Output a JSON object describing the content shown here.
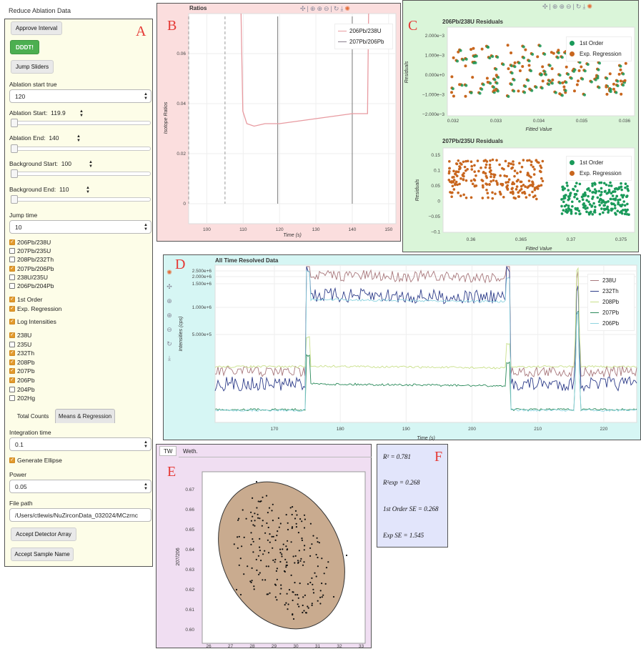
{
  "app": {
    "title": "Reduce Ablation Data"
  },
  "panel_letters": {
    "a": "A",
    "b": "B",
    "c": "C",
    "d": "D",
    "e": "E",
    "f": "F"
  },
  "controls": {
    "approve_interval": "Approve Interval",
    "dddt": "DDDT!",
    "jump_sliders": "Jump Sliders",
    "ablation_start_true_label": "Ablation start true",
    "ablation_start_true_value": "120",
    "ablation_start_label": "Ablation Start:",
    "ablation_start_value": "119.9",
    "ablation_end_label": "Ablation End:",
    "ablation_end_value": "140",
    "background_start_label": "Background Start:",
    "background_start_value": "100",
    "background_end_label": "Background End:",
    "background_end_value": "110",
    "jump_time_label": "Jump time",
    "jump_time_value": "10",
    "ratio_checks": [
      {
        "label": "206Pb/238U",
        "checked": true
      },
      {
        "label": "207Pb/235U",
        "checked": false
      },
      {
        "label": "208Pb/232Th",
        "checked": false
      },
      {
        "label": "207Pb/206Pb",
        "checked": true
      },
      {
        "label": "238U/235U",
        "checked": false
      },
      {
        "label": "206Pb/204Pb",
        "checked": false
      }
    ],
    "regression_checks": [
      {
        "label": "1st Order",
        "checked": true
      },
      {
        "label": "Exp. Regression",
        "checked": true
      }
    ],
    "log_intensities": {
      "label": "Log Intensities",
      "checked": true
    },
    "isotope_checks": [
      {
        "label": "238U",
        "checked": true
      },
      {
        "label": "235U",
        "checked": false
      },
      {
        "label": "232Th",
        "checked": true
      },
      {
        "label": "208Pb",
        "checked": true
      },
      {
        "label": "207Pb",
        "checked": true
      },
      {
        "label": "206Pb",
        "checked": true
      },
      {
        "label": "204Pb",
        "checked": false
      },
      {
        "label": "202Hg",
        "checked": false
      }
    ],
    "tabs": [
      "Total Counts",
      "Means & Regression"
    ],
    "integration_time_label": "Integration time",
    "integration_time_value": "0.1",
    "generate_ellipse": {
      "label": "Generate Ellipse",
      "checked": true
    },
    "power_label": "Power",
    "power_value": "0.05",
    "file_path_label": "File path",
    "file_path_value": "/Users/ctlewis/NuZirconData_032024/MCzrnc",
    "accept_detector": "Accept Detector Array",
    "accept_sample": "Accept Sample Name"
  },
  "toolbar_icons": [
    "pan-icon",
    "box-zoom-icon",
    "zoom-in-icon",
    "zoom-out-icon",
    "reset-icon",
    "save-icon",
    "bokeh-logo-icon"
  ],
  "colors": {
    "orange": "#c8661e",
    "green": "#1a9a5a",
    "pink_line": "#e89aa0",
    "grey_line": "#8a7f8e",
    "ellipse_fill": "#c9ab8f",
    "238U": "#a8787c",
    "232Th": "#2e3d8a",
    "208Pb": "#c9e08a",
    "207Pb": "#2a8a5a",
    "206Pb": "#8fd4e0"
  },
  "panel_b": {
    "title": "Ratios",
    "xlabel": "Time (s)",
    "ylabel": "Isotope Ratios",
    "legend": [
      "206Pb/238U",
      "207Pb/206Pb"
    ],
    "chart_data": {
      "type": "line",
      "x_ticks": [
        "100",
        "110",
        "120",
        "130",
        "140",
        "150"
      ],
      "y_ticks": [
        "0",
        "0.02",
        "0.04",
        "0.06"
      ],
      "xlim": [
        95,
        152
      ],
      "ylim": [
        -0.008,
        0.076
      ],
      "vlines": [
        95,
        105,
        119.5,
        140
      ],
      "series": [
        {
          "name": "206Pb/238U",
          "x": [
            109.4,
            109.9,
            111,
            113,
            116,
            120,
            125,
            130,
            135,
            140,
            144.2,
            144.5
          ],
          "y": [
            0.076,
            0.037,
            0.032,
            0.031,
            0.032,
            0.032,
            0.033,
            0.034,
            0.035,
            0.036,
            0.036,
            0.076
          ]
        }
      ]
    }
  },
  "panel_c": {
    "top": {
      "title": "206Pb/238U Residuals",
      "xlabel": "Fitted Value",
      "ylabel": "Residuals",
      "x_ticks": [
        "0.032",
        "0.033",
        "0.034",
        "0.035",
        "0.036"
      ],
      "y_ticks": [
        "2.000e−3",
        "1.000e−3",
        "0.000e+0",
        "−1.000e−3",
        "−2.000e−3"
      ],
      "legend": [
        "1st Order",
        "Exp. Regression"
      ]
    },
    "bottom": {
      "title": "207Pb/235U Residuals",
      "xlabel": "Fitted Value",
      "ylabel": "Residuals",
      "x_ticks": [
        "0.36",
        "0.365",
        "0.37",
        "0.375"
      ],
      "y_ticks": [
        "0.15",
        "0.1",
        "0.05",
        "0",
        "−0.05",
        "−0.1"
      ],
      "legend": [
        "1st Order",
        "Exp. Regression"
      ]
    }
  },
  "panel_d": {
    "title": "All Time Resolved Data",
    "xlabel": "Time (s)",
    "ylabel": "Intensities (cps)",
    "x_ticks": [
      "170",
      "180",
      "190",
      "200",
      "210",
      "220"
    ],
    "y_ticks": [
      "2.500e+6",
      "2.000e+6",
      "1.500e+6",
      "1.000e+6",
      "5.000e+5"
    ],
    "legend": [
      "238U",
      "232Th",
      "208Pb",
      "207Pb",
      "206Pb"
    ]
  },
  "panel_e": {
    "tabs": [
      "TW",
      "Weth."
    ],
    "ylabel": "207/206",
    "y_ticks": [
      "0.67",
      "0.66",
      "0.65",
      "0.64",
      "0.63",
      "0.62",
      "0.61",
      "0.60"
    ],
    "x_ticks": [
      "26",
      "27",
      "28",
      "29",
      "30",
      "31",
      "32",
      "33"
    ]
  },
  "panel_f": {
    "r2": "R² = 0.781",
    "r2_exp": "R²exp = 0.268",
    "first_order_se": "1st Order SE = 0.268",
    "exp_se": "Exp SE = 1.545"
  }
}
